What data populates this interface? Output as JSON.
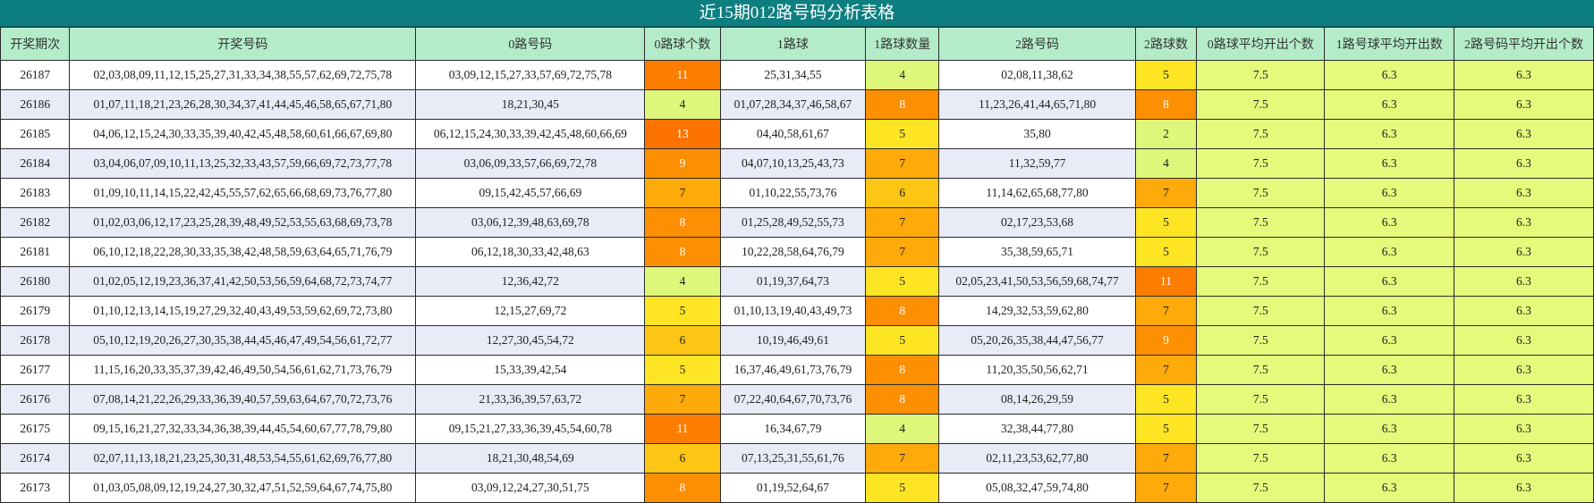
{
  "title": "近15期012路号码分析表格",
  "headers": [
    "开奖期次",
    "开奖号码",
    "0路号码",
    "0路球个数",
    "1路球",
    "1路球数量",
    "2路号码",
    "2路球数",
    "0路球平均开出个数",
    "1路号球平均开出数",
    "2路号码平均开出个数"
  ],
  "count_colors": {
    "2": "#def77a",
    "4": "#def77a",
    "5": "#fde524",
    "6": "#fdc614",
    "7": "#fdaa0a",
    "8": "#fd8f02",
    "9": "#fd8f02",
    "11": "#fd7d00",
    "13": "#fd7300"
  },
  "rows": [
    {
      "period": "26187",
      "draw": "02,03,08,09,11,12,15,25,27,31,33,34,38,55,57,62,69,72,75,78",
      "r0": "03,09,12,15,27,33,57,69,72,75,78",
      "c0": "11",
      "r1": "25,31,34,55",
      "c1": "4",
      "r2": "02,08,11,38,62",
      "c2": "5",
      "a0": "7.5",
      "a1": "6.3",
      "a2": "6.3"
    },
    {
      "period": "26186",
      "draw": "01,07,11,18,21,23,26,28,30,34,37,41,44,45,46,58,65,67,71,80",
      "r0": "18,21,30,45",
      "c0": "4",
      "r1": "01,07,28,34,37,46,58,67",
      "c1": "8",
      "r2": "11,23,26,41,44,65,71,80",
      "c2": "8",
      "a0": "7.5",
      "a1": "6.3",
      "a2": "6.3"
    },
    {
      "period": "26185",
      "draw": "04,06,12,15,24,30,33,35,39,40,42,45,48,58,60,61,66,67,69,80",
      "r0": "06,12,15,24,30,33,39,42,45,48,60,66,69",
      "c0": "13",
      "r1": "04,40,58,61,67",
      "c1": "5",
      "r2": "35,80",
      "c2": "2",
      "a0": "7.5",
      "a1": "6.3",
      "a2": "6.3"
    },
    {
      "period": "26184",
      "draw": "03,04,06,07,09,10,11,13,25,32,33,43,57,59,66,69,72,73,77,78",
      "r0": "03,06,09,33,57,66,69,72,78",
      "c0": "9",
      "r1": "04,07,10,13,25,43,73",
      "c1": "7",
      "r2": "11,32,59,77",
      "c2": "4",
      "a0": "7.5",
      "a1": "6.3",
      "a2": "6.3"
    },
    {
      "period": "26183",
      "draw": "01,09,10,11,14,15,22,42,45,55,57,62,65,66,68,69,73,76,77,80",
      "r0": "09,15,42,45,57,66,69",
      "c0": "7",
      "r1": "01,10,22,55,73,76",
      "c1": "6",
      "r2": "11,14,62,65,68,77,80",
      "c2": "7",
      "a0": "7.5",
      "a1": "6.3",
      "a2": "6.3"
    },
    {
      "period": "26182",
      "draw": "01,02,03,06,12,17,23,25,28,39,48,49,52,53,55,63,68,69,73,78",
      "r0": "03,06,12,39,48,63,69,78",
      "c0": "8",
      "r1": "01,25,28,49,52,55,73",
      "c1": "7",
      "r2": "02,17,23,53,68",
      "c2": "5",
      "a0": "7.5",
      "a1": "6.3",
      "a2": "6.3"
    },
    {
      "period": "26181",
      "draw": "06,10,12,18,22,28,30,33,35,38,42,48,58,59,63,64,65,71,76,79",
      "r0": "06,12,18,30,33,42,48,63",
      "c0": "8",
      "r1": "10,22,28,58,64,76,79",
      "c1": "7",
      "r2": "35,38,59,65,71",
      "c2": "5",
      "a0": "7.5",
      "a1": "6.3",
      "a2": "6.3"
    },
    {
      "period": "26180",
      "draw": "01,02,05,12,19,23,36,37,41,42,50,53,56,59,64,68,72,73,74,77",
      "r0": "12,36,42,72",
      "c0": "4",
      "r1": "01,19,37,64,73",
      "c1": "5",
      "r2": "02,05,23,41,50,53,56,59,68,74,77",
      "c2": "11",
      "a0": "7.5",
      "a1": "6.3",
      "a2": "6.3"
    },
    {
      "period": "26179",
      "draw": "01,10,12,13,14,15,19,27,29,32,40,43,49,53,59,62,69,72,73,80",
      "r0": "12,15,27,69,72",
      "c0": "5",
      "r1": "01,10,13,19,40,43,49,73",
      "c1": "8",
      "r2": "14,29,32,53,59,62,80",
      "c2": "7",
      "a0": "7.5",
      "a1": "6.3",
      "a2": "6.3"
    },
    {
      "period": "26178",
      "draw": "05,10,12,19,20,26,27,30,35,38,44,45,46,47,49,54,56,61,72,77",
      "r0": "12,27,30,45,54,72",
      "c0": "6",
      "r1": "10,19,46,49,61",
      "c1": "5",
      "r2": "05,20,26,35,38,44,47,56,77",
      "c2": "9",
      "a0": "7.5",
      "a1": "6.3",
      "a2": "6.3"
    },
    {
      "period": "26177",
      "draw": "11,15,16,20,33,35,37,39,42,46,49,50,54,56,61,62,71,73,76,79",
      "r0": "15,33,39,42,54",
      "c0": "5",
      "r1": "16,37,46,49,61,73,76,79",
      "c1": "8",
      "r2": "11,20,35,50,56,62,71",
      "c2": "7",
      "a0": "7.5",
      "a1": "6.3",
      "a2": "6.3"
    },
    {
      "period": "26176",
      "draw": "07,08,14,21,22,26,29,33,36,39,40,57,59,63,64,67,70,72,73,76",
      "r0": "21,33,36,39,57,63,72",
      "c0": "7",
      "r1": "07,22,40,64,67,70,73,76",
      "c1": "8",
      "r2": "08,14,26,29,59",
      "c2": "5",
      "a0": "7.5",
      "a1": "6.3",
      "a2": "6.3"
    },
    {
      "period": "26175",
      "draw": "09,15,16,21,27,32,33,34,36,38,39,44,45,54,60,67,77,78,79,80",
      "r0": "09,15,21,27,33,36,39,45,54,60,78",
      "c0": "11",
      "r1": "16,34,67,79",
      "c1": "4",
      "r2": "32,38,44,77,80",
      "c2": "5",
      "a0": "7.5",
      "a1": "6.3",
      "a2": "6.3"
    },
    {
      "period": "26174",
      "draw": "02,07,11,13,18,21,23,25,30,31,48,53,54,55,61,62,69,76,77,80",
      "r0": "18,21,30,48,54,69",
      "c0": "6",
      "r1": "07,13,25,31,55,61,76",
      "c1": "7",
      "r2": "02,11,23,53,62,77,80",
      "c2": "7",
      "a0": "7.5",
      "a1": "6.3",
      "a2": "6.3"
    },
    {
      "period": "26173",
      "draw": "01,03,05,08,09,12,19,24,27,30,32,47,51,52,59,64,67,74,75,80",
      "r0": "03,09,12,24,27,30,51,75",
      "c0": "8",
      "r1": "01,19,52,64,67",
      "c1": "5",
      "r2": "05,08,32,47,59,74,80",
      "c2": "7",
      "a0": "7.5",
      "a1": "6.3",
      "a2": "6.3"
    }
  ]
}
